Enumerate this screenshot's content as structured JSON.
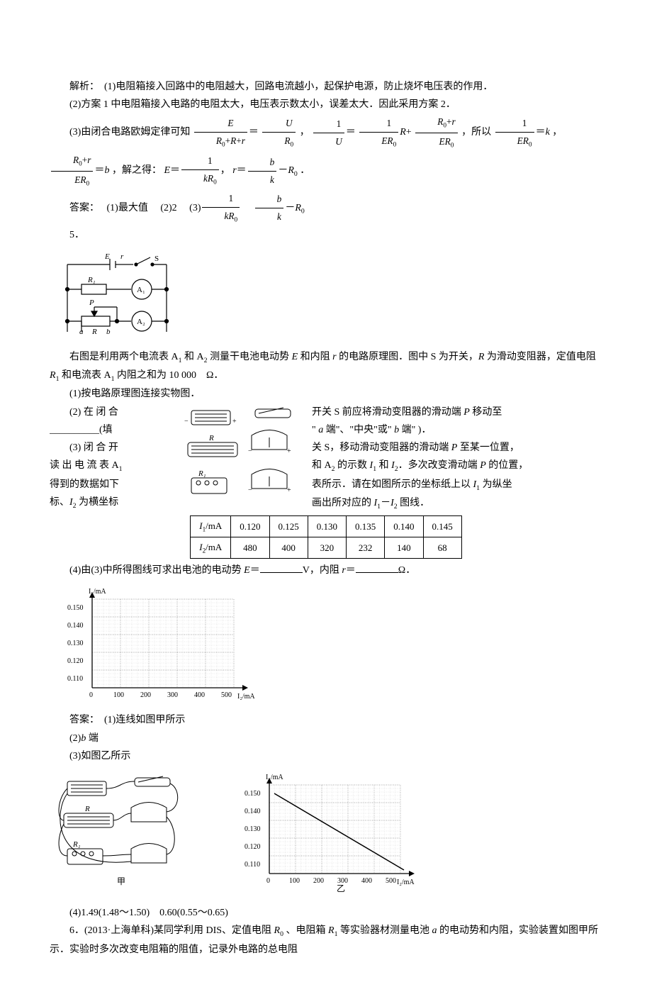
{
  "p4_sol": {
    "line1": "解析：　(1)电阻箱接入回路中的电阻越大，回路电流越小，起保护电源，防止烧坏电压表的作用．",
    "line2": "(2)方案 1 中电阻箱接入电路的电阻太大，电压表示数太小，误差太大．因此采用方案 2．",
    "line3_pre": "(3)由闭合电路欧姆定律可知",
    "line3_mid1": "，",
    "line3_mid2": "，所以",
    "line3_mid3": "，",
    "line3_end": "，解之得：",
    "line3_tail": "．",
    "ans_label": "答案：",
    "ans1": "(1)最大值",
    "ans2": "(2)2",
    "ans3_pre": "(3)"
  },
  "p5": {
    "num": "5．",
    "circuit_caption_E": "E",
    "circuit_caption_r": "r",
    "circuit_caption_S": "S",
    "circuit_caption_R1": "R₁",
    "circuit_caption_A1": "A₁",
    "circuit_caption_P": "P",
    "circuit_caption_A2": "A₂",
    "circuit_caption_a": "a",
    "circuit_caption_R": "R",
    "circuit_caption_b": "b",
    "desc1_pre": "右图是利用两个电流表 A",
    "desc1_mid1": " 和 A",
    "desc1_mid2": " 测量干电池电动势 ",
    "desc1_E": "E",
    "desc1_mid3": " 和内阻 ",
    "desc1_r": "r",
    "desc1_mid4": " 的电路原理图．图中 S 为开关，",
    "desc1_Rtxt": "R",
    "desc1_mid5": " 为滑动变阻器，定值电阻 ",
    "desc1_R1": "R",
    "desc1_mid6": " 和电流表 A",
    "desc1_mid7": " 内阻之和为 10 000　Ω．",
    "q1": "(1)按电路原理图连接实物图．",
    "q2_left": "(2) 在 闭 合",
    "q2_blankfill": "__________(填",
    "q2_right1": "开关 S 前应将滑动变阻器的滑动端 ",
    "q2_P": "P",
    "q2_right2": " 移动至",
    "q2_right3_quote": "\" ",
    "q2_right3a": "a",
    "q2_right3": " 端\"、\"中央\"或\" ",
    "q2_right3b": "b",
    "q2_right3end": " 端\" )．",
    "q3_left1": "(3) 闭 合 开",
    "q3_left2": "读 出 电 流 表 A",
    "q3_left3": "得到的数据如下",
    "q3_left4": "标、",
    "q3_left4_I2": "I",
    "q3_left4_end": " 为横坐标",
    "q3_right1": "关 S，移动滑动变阻器的滑动端 ",
    "q3_right1_P": "P",
    "q3_right1_end": " 至某一位置，",
    "q3_right2_pre": "和 A",
    "q3_right2_mid": " 的示数 ",
    "q3_right2_I1": "I",
    "q3_right2_and": " 和 ",
    "q3_right2_I2": "I",
    "q3_right2_end": "．多次改变滑动端 ",
    "q3_right2_P": "P",
    "q3_right2_end2": " 的位置，",
    "q3_right3": "表所示．请在如图所示的坐标纸上以 ",
    "q3_right3_I1": "I",
    "q3_right3_end": " 为纵坐",
    "q3_right4": "画出所对应的 ",
    "q3_right4_I1": "I",
    "q3_right4_dash": "－",
    "q3_right4_I2": "I",
    "q3_right4_end": " 图线．",
    "table_h1": "I₁/mA",
    "table_h2": "I₂/mA",
    "row1": [
      "0.120",
      "0.125",
      "0.130",
      "0.135",
      "0.140",
      "0.145"
    ],
    "row2": [
      "480",
      "400",
      "320",
      "232",
      "140",
      "68"
    ],
    "q4_pre": "(4)由(3)中所得图线可求出电池的电动势 ",
    "q4_E": "E",
    "q4_eq": "＝",
    "q4_unitV": "V，内阻 ",
    "q4_r": "r",
    "q4_unitO": "Ω．",
    "graph_ylabel": "I₁/mA",
    "graph_yticks": [
      "0.150",
      "0.140",
      "0.130",
      "0.120",
      "0.110"
    ],
    "graph_xticks": [
      "0",
      "100",
      "200",
      "300",
      "400",
      "500"
    ],
    "graph_xlabel": "I₂/mA",
    "ans_label": "答案：",
    "ans1": "(1)连线如图甲所示",
    "ans2": "(2)",
    "ans2_b": "b",
    "ans2_end": " 端",
    "ans3": "(3)如图乙所示",
    "caption_jia": "甲",
    "caption_yi": "乙",
    "ans4": "(4)1.49(1.48～1.50)　0.60(0.55～0.65)"
  },
  "p6": {
    "line1_pre": "6．(2013·上海单科)某同学利用 DIS、定值电阻 ",
    "line1_R0": "R",
    "line1_mid1": "、电阻箱 ",
    "line1_R1": "R",
    "line1_mid2": " 等实验器材测量电池 ",
    "line1_a": "a",
    "line1_mid3": " 的电动势和内阻，实验装置如图甲所示．实验时多次改变电阻箱的阻值，记录外电路的总电阻"
  },
  "colors": {
    "text": "#000000",
    "bg": "#ffffff",
    "grid_major": "#888888",
    "grid_minor": "#cccccc"
  }
}
